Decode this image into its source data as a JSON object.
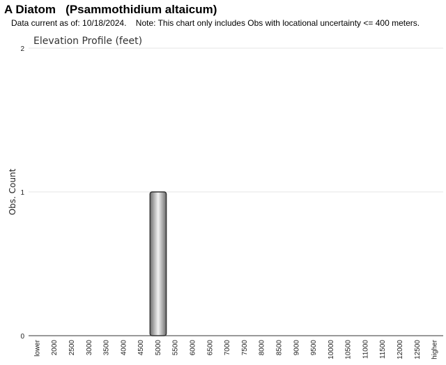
{
  "page": {
    "title": "A Diatom   (Psammothidium altaicum)",
    "note": "Data current as of: 10/18/2024.    Note: This chart only includes Obs with locational uncertainty <= 400 meters."
  },
  "colors": {
    "bar_fill_mid": "#f2f2f2",
    "bar_fill_edge": "#6e6e6e",
    "bar_stroke": "#333333",
    "gridline": "#e6e6e6",
    "axis_line": "#333333"
  },
  "chart_data": {
    "type": "bar",
    "title": "Elevation Profile (feet)",
    "xlabel": "",
    "ylabel": "Obs. Count",
    "ylim": [
      0,
      2
    ],
    "yticks": [
      "0",
      "1",
      "2"
    ],
    "grid": true,
    "legend": "none",
    "categories": [
      "lower",
      "2000",
      "2500",
      "3000",
      "3500",
      "4000",
      "4500",
      "5000",
      "5500",
      "6000",
      "6500",
      "7000",
      "7500",
      "8000",
      "8500",
      "9000",
      "9500",
      "10000",
      "10500",
      "11000",
      "11500",
      "12000",
      "12500",
      "higher"
    ],
    "values": [
      0,
      0,
      0,
      0,
      0,
      0,
      0,
      1,
      0,
      0,
      0,
      0,
      0,
      0,
      0,
      0,
      0,
      0,
      0,
      0,
      0,
      0,
      0,
      0
    ]
  }
}
